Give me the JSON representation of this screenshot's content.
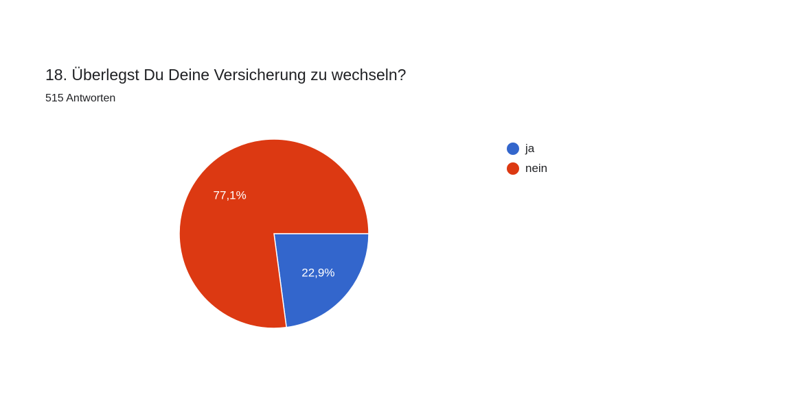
{
  "question": {
    "title": "18. Überlegst Du Deine Versicherung zu wechseln?",
    "responses": "515 Antworten"
  },
  "chart_data": {
    "type": "pie",
    "title": "18. Überlegst Du Deine Versicherung zu wechseln?",
    "subtitle": "515 Antworten",
    "slices": [
      {
        "label": "ja",
        "value": 22.9,
        "display": "22,9%",
        "color": "#3366cc"
      },
      {
        "label": "nein",
        "value": 77.1,
        "display": "77,1%",
        "color": "#dc3912"
      }
    ],
    "legend_position": "right"
  }
}
